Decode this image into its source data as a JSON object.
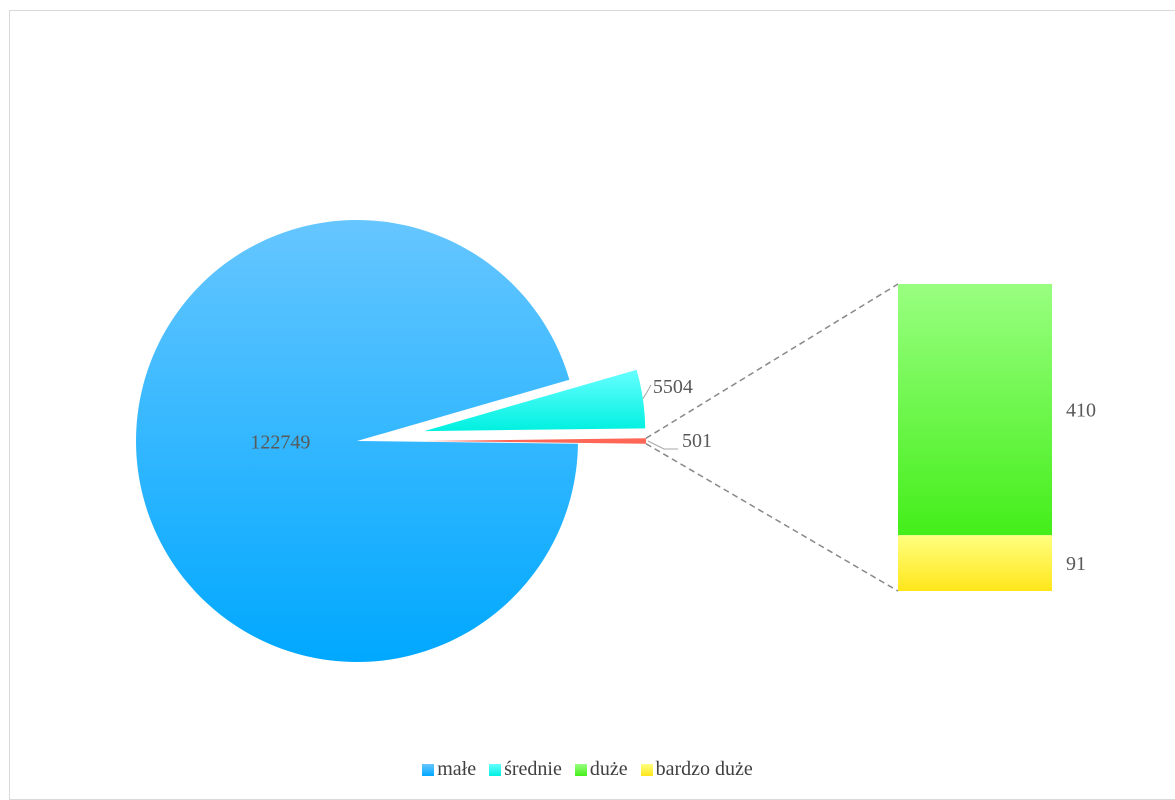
{
  "chart_data": {
    "type": "pie-of-bar",
    "title": "",
    "series": [
      {
        "name": "małe",
        "value": 122749,
        "color_top": "#66c6ff",
        "color_bottom": "#00a8ff"
      },
      {
        "name": "średnie",
        "value": 5504,
        "color_top": "#66ffff",
        "color_bottom": "#00f0e0"
      },
      {
        "name": "duże",
        "value": 410,
        "color_top": "#99ff80",
        "color_bottom": "#44ee1a"
      },
      {
        "name": "bardzo duże",
        "value": 91,
        "color_top": "#ffff80",
        "color_bottom": "#ffe61a"
      }
    ],
    "other": {
      "label": "501",
      "value": 501,
      "color": "#ff6655",
      "members": [
        "duże",
        "bardzo duże"
      ]
    },
    "data_labels": {
      "male": "122749",
      "srednie": "5504",
      "other": "501",
      "duze": "410",
      "bardzo_duze": "91"
    },
    "legend": {
      "position": "bottom",
      "entries": [
        "małe",
        "średnie",
        "duże",
        "bardzo duże"
      ]
    }
  }
}
